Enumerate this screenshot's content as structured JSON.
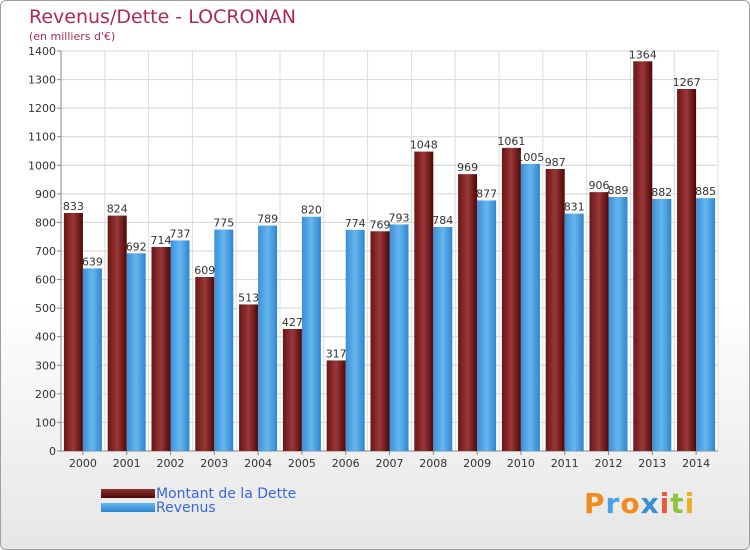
{
  "header": {
    "title": "Revenus/Dette - LOCRONAN",
    "subtitle": "(en milliers d'€)"
  },
  "legend": {
    "items": [
      {
        "label": "Montant de la Dette"
      },
      {
        "label": "Revenus"
      }
    ]
  },
  "logo": {
    "text": "Proxiti"
  },
  "colors": {
    "dette_dark": "#5a0a0a",
    "dette_light": "#8e3434",
    "revenus_dark": "#2a7ec6",
    "revenus_light": "#5fb0ec",
    "title": "#b0285a",
    "legend_text": "#3a67d6"
  },
  "chart_data": {
    "type": "bar",
    "title": "Revenus/Dette - LOCRONAN",
    "ylabel": "(en milliers d'€)",
    "categories": [
      "2000",
      "2001",
      "2002",
      "2003",
      "2004",
      "2005",
      "2006",
      "2007",
      "2008",
      "2009",
      "2010",
      "2011",
      "2012",
      "2013",
      "2014"
    ],
    "series": [
      {
        "name": "Montant de la Dette",
        "values": [
          833,
          824,
          714,
          609,
          513,
          427,
          317,
          769,
          1048,
          969,
          1061,
          987,
          906,
          1364,
          1267
        ]
      },
      {
        "name": "Revenus",
        "values": [
          639,
          692,
          737,
          775,
          789,
          820,
          774,
          793,
          784,
          877,
          1005,
          831,
          889,
          882,
          885
        ]
      }
    ],
    "ylim": [
      0,
      1400
    ],
    "yticks": [
      0,
      100,
      200,
      300,
      400,
      500,
      600,
      700,
      800,
      900,
      1000,
      1100,
      1200,
      1300,
      1400
    ],
    "grid": true,
    "legend_position": "bottom-left"
  }
}
